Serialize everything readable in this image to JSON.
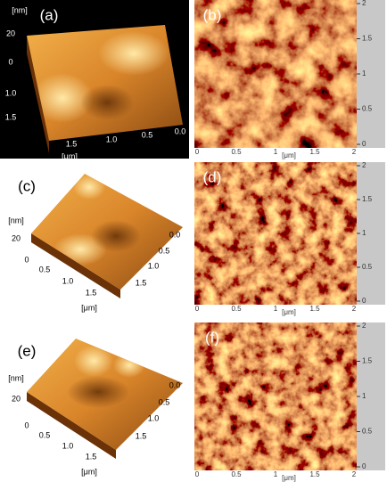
{
  "panels": [
    {
      "label": "(a)",
      "z_unit": "[nm]",
      "z_ticks": [
        "20",
        "0"
      ],
      "y_ticks": [
        "1.0",
        "1.5"
      ],
      "x_ticks": [
        "1.5",
        "1.0",
        "0.5",
        "0.0"
      ],
      "xy_unit": "[μm]"
    },
    {
      "label": "(b)",
      "right_ticks": [
        "2",
        "1.5",
        "1",
        "0.5",
        "0"
      ],
      "bottom_ticks": [
        "0",
        "0.5",
        "1",
        "1.5",
        "2"
      ],
      "unit": "[μm]"
    },
    {
      "label": "(c)",
      "z_unit": "[nm]",
      "z_ticks": [
        "20"
      ],
      "x_ticks": [
        "0",
        "0.5",
        "1.0",
        "1.5"
      ],
      "y_ticks": [
        "0.0",
        "0.5",
        "1.0",
        "1.5"
      ],
      "xy_unit": "[μm]"
    },
    {
      "label": "(d)",
      "right_ticks": [
        "2",
        "1.5",
        "1",
        "0.5",
        "0"
      ],
      "bottom_ticks": [
        "0",
        "0.5",
        "1",
        "1.5",
        "2"
      ],
      "unit": "[μm]"
    },
    {
      "label": "(e)",
      "z_unit": "[nm]",
      "z_ticks": [
        "20"
      ],
      "x_ticks": [
        "0",
        "0.5",
        "1.0",
        "1.5"
      ],
      "y_ticks": [
        "0.0",
        "0.5",
        "1.0",
        "1.5"
      ],
      "xy_unit": "[μm]"
    },
    {
      "label": "(f)",
      "right_ticks": [
        "2",
        "1.5",
        "1",
        "0.5",
        "0"
      ],
      "bottom_ticks": [
        "0",
        "0.5",
        "1",
        "1.5",
        "2"
      ],
      "unit": "[μm]"
    }
  ]
}
